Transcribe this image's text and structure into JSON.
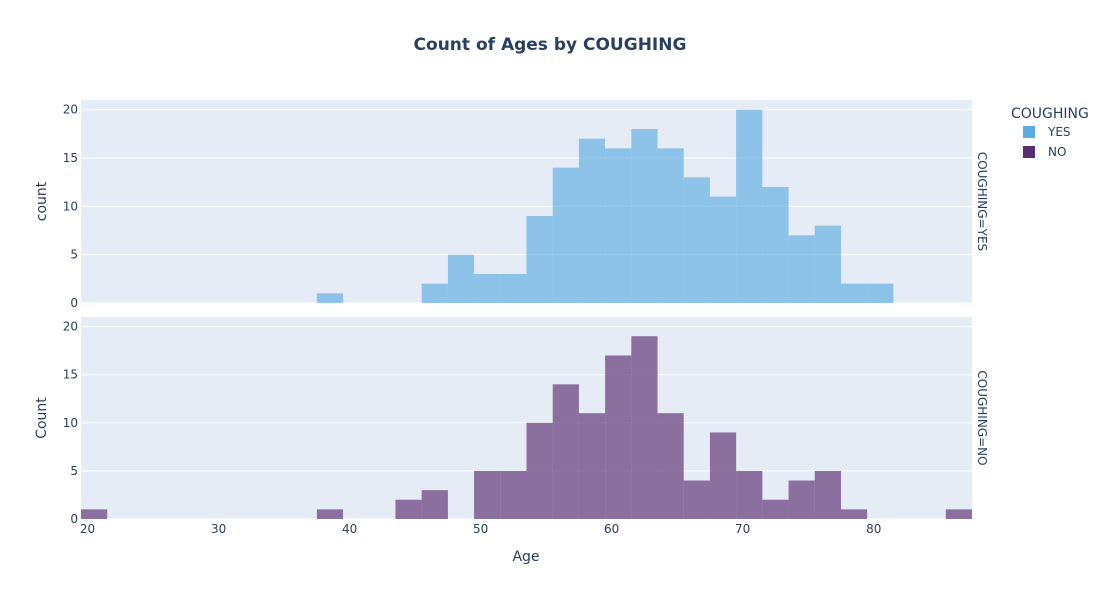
{
  "chart_data": {
    "type": "bar",
    "title": "Count of Ages by COUGHING",
    "xlabel": "Age",
    "x_ticks": [
      20,
      30,
      40,
      50,
      60,
      70,
      80
    ],
    "xlim": [
      19.5,
      87.5
    ],
    "bin_width": 2,
    "legend": {
      "title": "COUGHING",
      "position": "top-right",
      "items": [
        {
          "label": "YES",
          "color": "#5dade2"
        },
        {
          "label": "NO",
          "color": "#5b2c6f"
        }
      ]
    },
    "grid": true,
    "panels": [
      {
        "name": "YES",
        "facet_label": "COUGHING=YES",
        "ylabel": "count",
        "color": "#5dade2",
        "opacity": 0.65,
        "ylim": [
          0,
          21
        ],
        "y_ticks": [
          0,
          5,
          10,
          15,
          20
        ],
        "bins": [
          {
            "x0": 37.5,
            "count": 1
          },
          {
            "x0": 45.5,
            "count": 2
          },
          {
            "x0": 47.5,
            "count": 5
          },
          {
            "x0": 49.5,
            "count": 3
          },
          {
            "x0": 51.5,
            "count": 3
          },
          {
            "x0": 53.5,
            "count": 9
          },
          {
            "x0": 55.5,
            "count": 14
          },
          {
            "x0": 57.5,
            "count": 17
          },
          {
            "x0": 59.5,
            "count": 16
          },
          {
            "x0": 61.5,
            "count": 18
          },
          {
            "x0": 63.5,
            "count": 16
          },
          {
            "x0": 65.5,
            "count": 13
          },
          {
            "x0": 67.5,
            "count": 11
          },
          {
            "x0": 69.5,
            "count": 20
          },
          {
            "x0": 71.5,
            "count": 12
          },
          {
            "x0": 73.5,
            "count": 7
          },
          {
            "x0": 75.5,
            "count": 8
          },
          {
            "x0": 77.5,
            "count": 2
          },
          {
            "x0": 79.5,
            "count": 2
          }
        ]
      },
      {
        "name": "NO",
        "facet_label": "COUGHING=NO",
        "ylabel": "Count",
        "color": "#5b2c6f",
        "opacity": 0.65,
        "ylim": [
          0,
          21
        ],
        "y_ticks": [
          0,
          5,
          10,
          15,
          20
        ],
        "bins": [
          {
            "x0": 19.5,
            "count": 1
          },
          {
            "x0": 37.5,
            "count": 1
          },
          {
            "x0": 43.5,
            "count": 2
          },
          {
            "x0": 45.5,
            "count": 3
          },
          {
            "x0": 49.5,
            "count": 5
          },
          {
            "x0": 51.5,
            "count": 5
          },
          {
            "x0": 53.5,
            "count": 10
          },
          {
            "x0": 55.5,
            "count": 14
          },
          {
            "x0": 57.5,
            "count": 11
          },
          {
            "x0": 59.5,
            "count": 17
          },
          {
            "x0": 61.5,
            "count": 19
          },
          {
            "x0": 63.5,
            "count": 11
          },
          {
            "x0": 65.5,
            "count": 4
          },
          {
            "x0": 67.5,
            "count": 9
          },
          {
            "x0": 69.5,
            "count": 5
          },
          {
            "x0": 71.5,
            "count": 2
          },
          {
            "x0": 73.5,
            "count": 4
          },
          {
            "x0": 75.5,
            "count": 5
          },
          {
            "x0": 77.5,
            "count": 1
          },
          {
            "x0": 85.5,
            "count": 1
          }
        ]
      }
    ]
  }
}
